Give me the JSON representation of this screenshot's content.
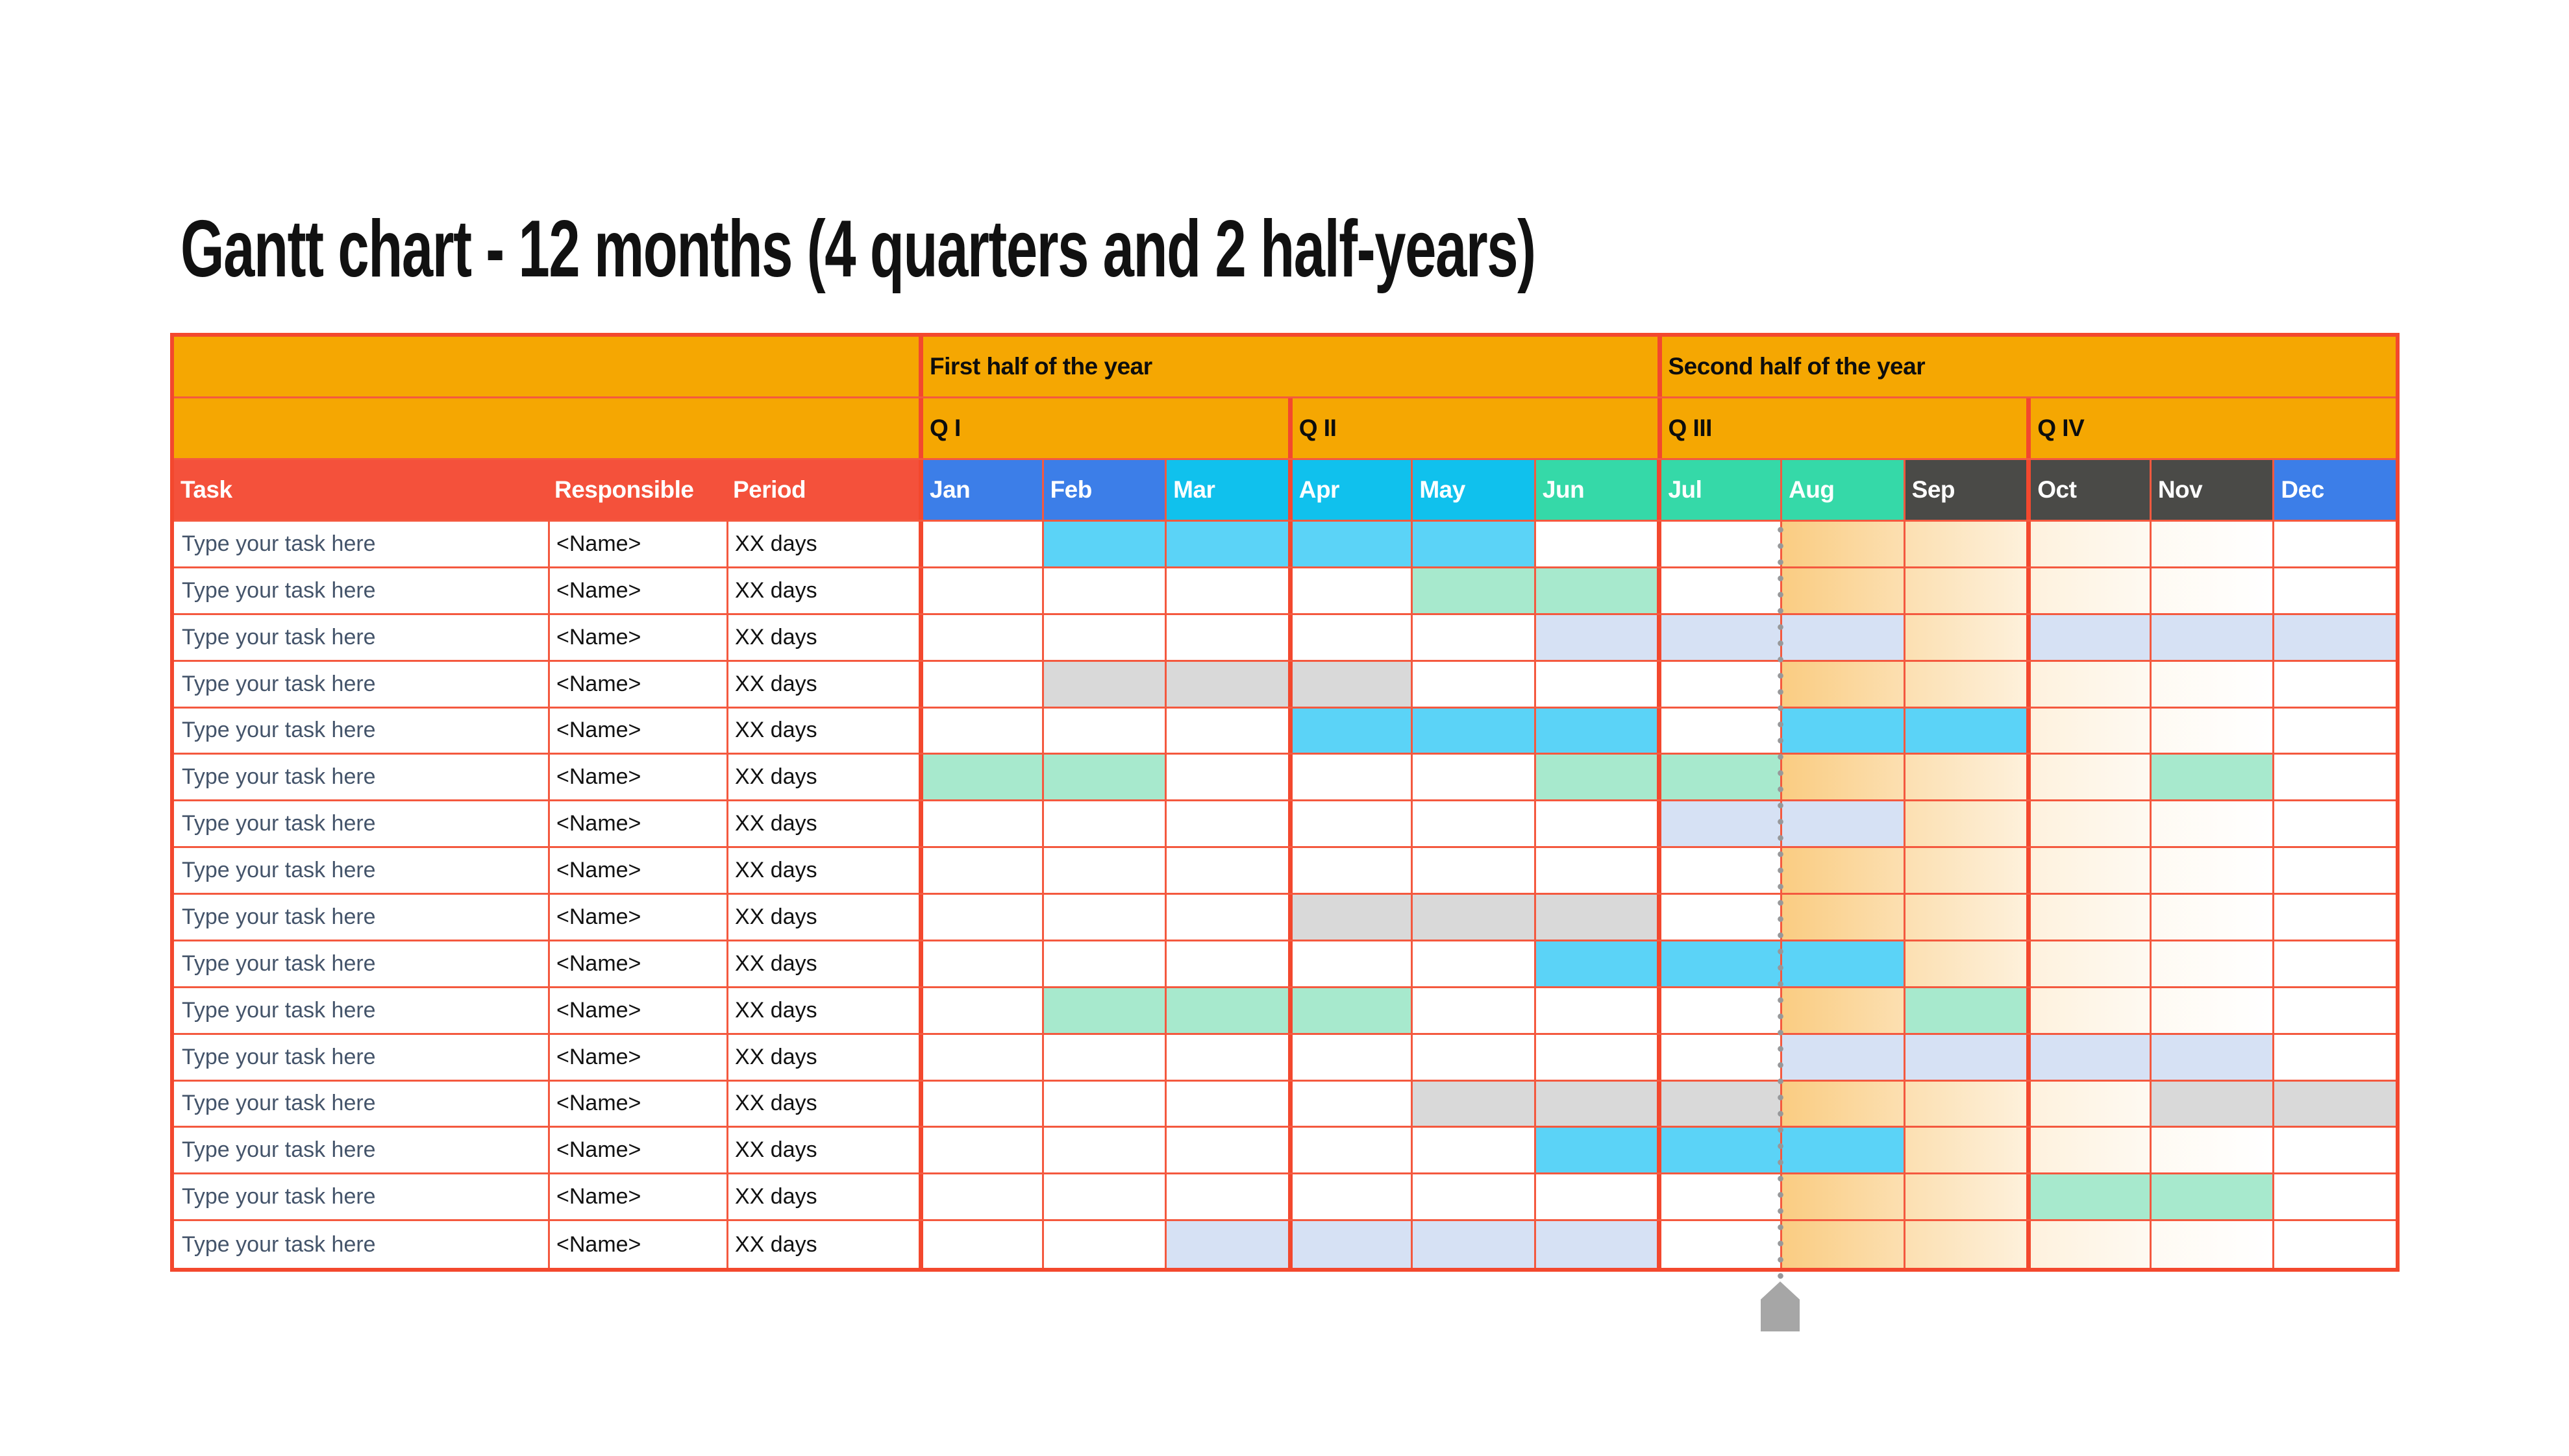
{
  "slide": {
    "title": "Gantt chart - 12 months (4 quarters and 2 half-years)"
  },
  "table": {
    "column_headers": {
      "task": "Task",
      "responsible": "Responsible",
      "period": "Period"
    },
    "halves": [
      {
        "label": "First half of the year",
        "span_months": 6
      },
      {
        "label": "Second half of the year",
        "span_months": 6
      }
    ],
    "quarters": [
      {
        "label": "Q I",
        "span_months": 3
      },
      {
        "label": "Q II",
        "span_months": 3
      },
      {
        "label": "Q III",
        "span_months": 3
      },
      {
        "label": "Q IV",
        "span_months": 3
      }
    ],
    "months": [
      {
        "label": "Jan",
        "color": "#3C7EE8"
      },
      {
        "label": "Feb",
        "color": "#3C7EE8"
      },
      {
        "label": "Mar",
        "color": "#10C1ED"
      },
      {
        "label": "Apr",
        "color": "#10C1ED"
      },
      {
        "label": "May",
        "color": "#10C1ED"
      },
      {
        "label": "Jun",
        "color": "#35D9A8"
      },
      {
        "label": "Jul",
        "color": "#35D9A8"
      },
      {
        "label": "Aug",
        "color": "#35D9A8"
      },
      {
        "label": "Sep",
        "color": "#4A4A47"
      },
      {
        "label": "Oct",
        "color": "#4A4A47"
      },
      {
        "label": "Nov",
        "color": "#4A4A47"
      },
      {
        "label": "Dec",
        "color": "#3C7EE8"
      }
    ],
    "bar_palette": {
      "cyan": "#5BD3F7",
      "mint": "#A7E9CD",
      "lavender": "#D6E1F4",
      "gray": "#D9D9D9"
    },
    "rows": [
      {
        "task": "Type your task here",
        "responsible": "<Name>",
        "period": "XX days",
        "bars": [
          {
            "start": 2,
            "end": 5,
            "color": "cyan"
          }
        ]
      },
      {
        "task": "Type your task here",
        "responsible": "<Name>",
        "period": "XX days",
        "bars": [
          {
            "start": 5,
            "end": 6,
            "color": "mint"
          }
        ]
      },
      {
        "task": "Type your task here",
        "responsible": "<Name>",
        "period": "XX days",
        "bars": [
          {
            "start": 6,
            "end": 8,
            "color": "lavender"
          },
          {
            "start": 10,
            "end": 12,
            "color": "lavender"
          }
        ]
      },
      {
        "task": "Type your task here",
        "responsible": "<Name>",
        "period": "XX days",
        "bars": [
          {
            "start": 2,
            "end": 4,
            "color": "gray"
          }
        ]
      },
      {
        "task": "Type your task here",
        "responsible": "<Name>",
        "period": "XX days",
        "bars": [
          {
            "start": 4,
            "end": 6,
            "color": "cyan"
          },
          {
            "start": 8,
            "end": 9,
            "color": "cyan"
          }
        ]
      },
      {
        "task": "Type your task here",
        "responsible": "<Name>",
        "period": "XX days",
        "bars": [
          {
            "start": 1,
            "end": 2,
            "color": "mint"
          },
          {
            "start": 6,
            "end": 7,
            "color": "mint"
          },
          {
            "start": 11,
            "end": 11,
            "color": "mint"
          }
        ]
      },
      {
        "task": "Type your task here",
        "responsible": "<Name>",
        "period": "XX days",
        "bars": [
          {
            "start": 7,
            "end": 8,
            "color": "lavender"
          }
        ]
      },
      {
        "task": "Type your task here",
        "responsible": "<Name>",
        "period": "XX days",
        "bars": []
      },
      {
        "task": "Type your task here",
        "responsible": "<Name>",
        "period": "XX days",
        "bars": [
          {
            "start": 4,
            "end": 6,
            "color": "gray"
          }
        ]
      },
      {
        "task": "Type your task here",
        "responsible": "<Name>",
        "period": "XX days",
        "bars": [
          {
            "start": 6,
            "end": 8,
            "color": "cyan"
          }
        ]
      },
      {
        "task": "Type your task here",
        "responsible": "<Name>",
        "period": "XX days",
        "bars": [
          {
            "start": 2,
            "end": 4,
            "color": "mint"
          },
          {
            "start": 9,
            "end": 9,
            "color": "mint"
          }
        ]
      },
      {
        "task": "Type your task here",
        "responsible": "<Name>",
        "period": "XX days",
        "bars": [
          {
            "start": 8,
            "end": 11,
            "color": "lavender"
          }
        ]
      },
      {
        "task": "Type your task here",
        "responsible": "<Name>",
        "period": "XX days",
        "bars": [
          {
            "start": 5,
            "end": 7,
            "color": "gray"
          },
          {
            "start": 11,
            "end": 12,
            "color": "gray"
          }
        ]
      },
      {
        "task": "Type your task here",
        "responsible": "<Name>",
        "period": "XX days",
        "bars": [
          {
            "start": 6,
            "end": 8,
            "color": "cyan"
          }
        ]
      },
      {
        "task": "Type your task here",
        "responsible": "<Name>",
        "period": "XX days",
        "bars": [
          {
            "start": 10,
            "end": 11,
            "color": "mint"
          }
        ]
      },
      {
        "task": "Type your task here",
        "responsible": "<Name>",
        "period": "XX days",
        "bars": [
          {
            "start": 3,
            "end": 6,
            "color": "lavender"
          }
        ]
      }
    ],
    "today_marker": {
      "at_month_start": 8,
      "handle_color": "#A6A6A6",
      "dot_color": "#97989A"
    },
    "colors": {
      "header_orange": "#F5A702",
      "header_red": "#F4513B",
      "grid_thin": "#F4593F",
      "grid_strong": "#F3482E",
      "task_text": "#44546A",
      "future_band": "#F6A726"
    }
  }
}
